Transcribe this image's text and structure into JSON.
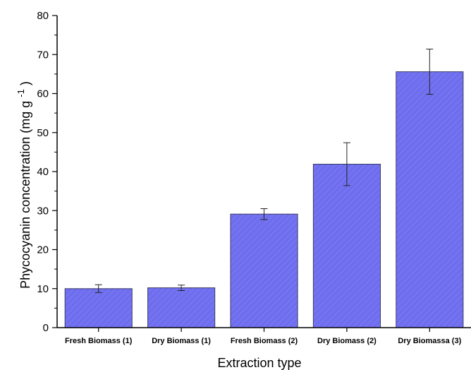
{
  "chart_data": {
    "type": "bar",
    "title": "",
    "xlabel": "Extraction type",
    "ylabel": "Phycocyanin concentration (mg g",
    "ylabel_sup": "-1",
    "ylabel_close": ")",
    "categories": [
      "Fresh Biomass (1)",
      "Dry Biomass (1)",
      "Fresh Biomass (2)",
      "Dry Biomass (2)",
      "Dry Biomassa (3)"
    ],
    "series": [
      {
        "values": [
          10.0,
          10.2,
          29.1,
          41.9,
          65.6
        ],
        "errors": [
          1.0,
          0.7,
          1.4,
          5.5,
          5.8
        ]
      }
    ],
    "ylim": [
      0,
      80
    ],
    "yticks": [
      0,
      10,
      20,
      30,
      40,
      50,
      60,
      70,
      80
    ],
    "grid": false,
    "legend": "none",
    "bar_color": "#6f6ff0",
    "hatch_color": "#5a5ad8"
  }
}
